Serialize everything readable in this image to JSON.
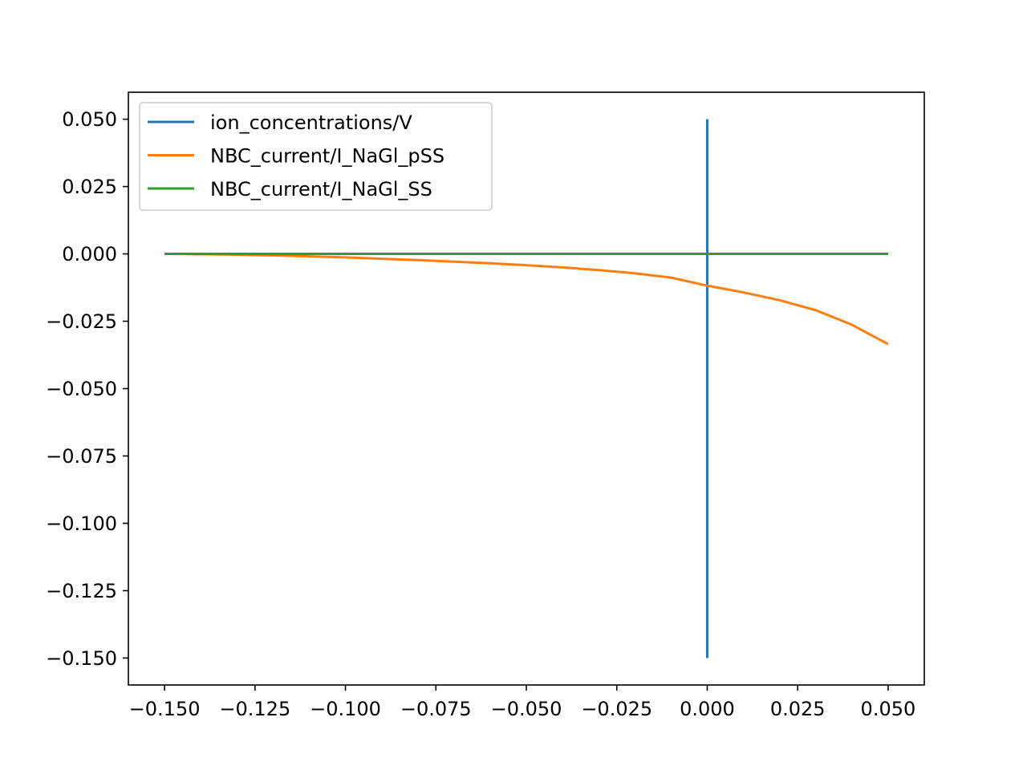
{
  "chart_data": {
    "type": "line",
    "title": "",
    "xlabel": "",
    "ylabel": "",
    "xlim": [
      -0.16,
      0.06
    ],
    "ylim": [
      -0.16,
      0.06
    ],
    "xticks": [
      -0.15,
      -0.125,
      -0.1,
      -0.075,
      -0.05,
      -0.025,
      0.0,
      0.025,
      0.05
    ],
    "yticks": [
      0.05,
      0.025,
      0.0,
      -0.025,
      -0.05,
      -0.075,
      -0.1,
      -0.125,
      -0.15
    ],
    "xtick_labels": [
      "−0.150",
      "−0.125",
      "−0.100",
      "−0.075",
      "−0.050",
      "−0.025",
      "0.000",
      "0.025",
      "0.050"
    ],
    "ytick_labels": [
      "0.050",
      "0.025",
      "0.000",
      "−0.025",
      "−0.050",
      "−0.075",
      "−0.100",
      "−0.125",
      "−0.150"
    ],
    "grid": false,
    "legend_position": "upper-left",
    "series": [
      {
        "name": "ion_concentrations/V",
        "color": "#1f77b4",
        "x": [
          0.0,
          0.0
        ],
        "y": [
          -0.15,
          0.05
        ]
      },
      {
        "name": "NBC_current/I_NaGl_pSS",
        "color": "#ff7f0e",
        "x": [
          -0.15,
          -0.14,
          -0.13,
          -0.12,
          -0.11,
          -0.1,
          -0.09,
          -0.08,
          -0.07,
          -0.06,
          -0.05,
          -0.04,
          -0.03,
          -0.02,
          -0.01,
          0.0,
          0.01,
          0.02,
          0.03,
          0.04,
          0.05
        ],
        "y": [
          0.0,
          -0.0001,
          -0.0003,
          -0.0006,
          -0.0009,
          -0.0013,
          -0.0018,
          -0.0023,
          -0.0029,
          -0.0035,
          -0.0042,
          -0.005,
          -0.006,
          -0.0072,
          -0.0088,
          -0.0118,
          -0.0143,
          -0.0172,
          -0.0209,
          -0.0263,
          -0.0335
        ]
      },
      {
        "name": "NBC_current/I_NaGl_SS",
        "color": "#2ca02c",
        "x": [
          -0.15,
          0.05
        ],
        "y": [
          0.0,
          0.0
        ]
      }
    ]
  }
}
